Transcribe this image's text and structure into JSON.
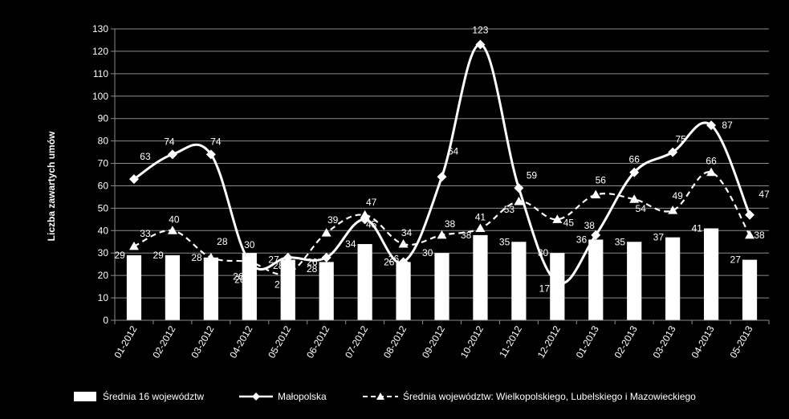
{
  "chart_data": {
    "type": "bar+line",
    "title": "",
    "ylabel": "Liczba zawartych umów",
    "xlabel": "",
    "ylim": [
      0,
      130
    ],
    "ytick_step": 10,
    "grid": true,
    "legend_position": "bottom",
    "categories": [
      "01-2012",
      "02-2012",
      "03-2012",
      "04-2012",
      "05-2012",
      "06-2012",
      "07-2012",
      "08-2012",
      "09-2012",
      "10-2012",
      "11-2012",
      "12-2012",
      "01-2013",
      "02-2013",
      "03-2013",
      "04-2013",
      "05-2013"
    ],
    "series": [
      {
        "name": "Średnia 16 województw",
        "type": "bar",
        "color": "#ffffff",
        "values": [
          29,
          29,
          28,
          30,
          27,
          26,
          34,
          26,
          30,
          38,
          35,
          30,
          36,
          35,
          37,
          41,
          27
        ],
        "labels": [
          "29",
          "29",
          "28",
          "30",
          "27",
          "26",
          "34",
          "26",
          "30",
          "38",
          "35",
          "30",
          "36",
          "35",
          "37",
          "41",
          "27"
        ]
      },
      {
        "name": "Małopolska",
        "type": "line",
        "style": "solid",
        "marker": "diamond",
        "color": "#ffffff",
        "values": [
          63,
          74,
          74,
          26,
          28,
          28,
          45,
          26,
          64,
          123,
          59,
          17,
          38,
          66,
          75,
          87,
          47
        ],
        "labels": [
          "63",
          "74",
          "74",
          "26",
          "28",
          "28",
          "45",
          "26",
          "64",
          "123",
          "59",
          "17",
          "38",
          "66",
          "75",
          "87",
          "47"
        ]
      },
      {
        "name": "Średnia województw: Wielkopolskiego, Lubelskiego i Mazowieckiego",
        "type": "line",
        "style": "dashed",
        "marker": "triangle",
        "color": "#ffffff",
        "values": [
          33,
          40,
          28,
          26,
          21,
          39,
          47,
          34,
          38,
          41,
          53,
          45,
          56,
          54,
          49,
          66,
          38
        ],
        "labels": [
          "33",
          "40",
          "28",
          "26",
          "21",
          "39",
          "47",
          "34",
          "38",
          "41",
          "53",
          "45",
          "56",
          "54",
          "49",
          "66",
          "38"
        ]
      }
    ]
  }
}
